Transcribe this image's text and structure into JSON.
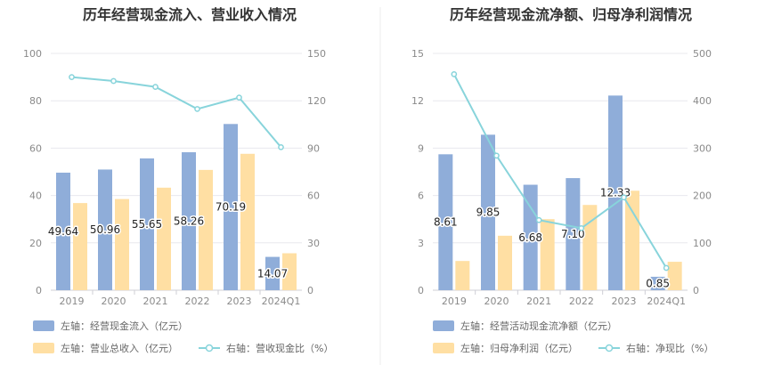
{
  "chart_data": [
    {
      "type": "bar",
      "title": "历年经营现金流入、营业收入情况",
      "categories": [
        "2019",
        "2020",
        "2021",
        "2022",
        "2023",
        "2024Q1"
      ],
      "left_axis": {
        "ylim": [
          0,
          100
        ],
        "ticks": [
          "0",
          "20",
          "40",
          "60",
          "80",
          "100"
        ]
      },
      "right_axis": {
        "ylim": [
          0,
          150
        ],
        "ticks": [
          "0",
          "30",
          "60",
          "90",
          "120",
          "150"
        ]
      },
      "series": [
        {
          "name": "左轴：经营现金流入（亿元）",
          "type": "bar",
          "axis": "left",
          "color": "#8fadd9",
          "values": [
            49.64,
            50.96,
            55.65,
            58.26,
            70.19,
            14.07
          ],
          "labels": [
            "49.64",
            "50.96",
            "55.65",
            "58.26",
            "70.19",
            "14.07"
          ]
        },
        {
          "name": "左轴：营业总收入（亿元）",
          "type": "bar",
          "axis": "left",
          "color": "#ffdfa3",
          "values": [
            36.8,
            38.5,
            43.3,
            50.8,
            57.6,
            15.6
          ]
        },
        {
          "name": "右轴：营收现金比（%）",
          "type": "line",
          "axis": "right",
          "color": "#88d4db",
          "values": [
            135.0,
            132.5,
            128.8,
            114.8,
            122.0,
            90.6
          ]
        }
      ]
    },
    {
      "type": "bar",
      "title": "历年经营现金流净额、归母净利润情况",
      "categories": [
        "2019",
        "2020",
        "2021",
        "2022",
        "2023",
        "2024Q1"
      ],
      "left_axis": {
        "ylim": [
          0,
          15
        ],
        "ticks": [
          "0",
          "3",
          "6",
          "9",
          "12",
          "15"
        ]
      },
      "right_axis": {
        "ylim": [
          0,
          500
        ],
        "ticks": [
          "0",
          "100",
          "200",
          "300",
          "400",
          "500"
        ]
      },
      "series": [
        {
          "name": "左轴：经营活动现金流净额（亿元）",
          "type": "bar",
          "axis": "left",
          "color": "#8fadd9",
          "values": [
            8.61,
            9.85,
            6.68,
            7.1,
            12.33,
            0.85
          ],
          "labels": [
            "8.61",
            "9.85",
            "6.68",
            "7.10",
            "12.33",
            "0.85"
          ]
        },
        {
          "name": "左轴：归母净利润（亿元）",
          "type": "bar",
          "axis": "left",
          "color": "#ffdfa3",
          "values": [
            1.85,
            3.45,
            4.5,
            5.4,
            6.3,
            1.8
          ]
        },
        {
          "name": "右轴：净现比（%）",
          "type": "line",
          "axis": "right",
          "color": "#88d4db",
          "values": [
            456,
            284,
            148,
            131,
            196,
            47
          ]
        }
      ]
    }
  ]
}
